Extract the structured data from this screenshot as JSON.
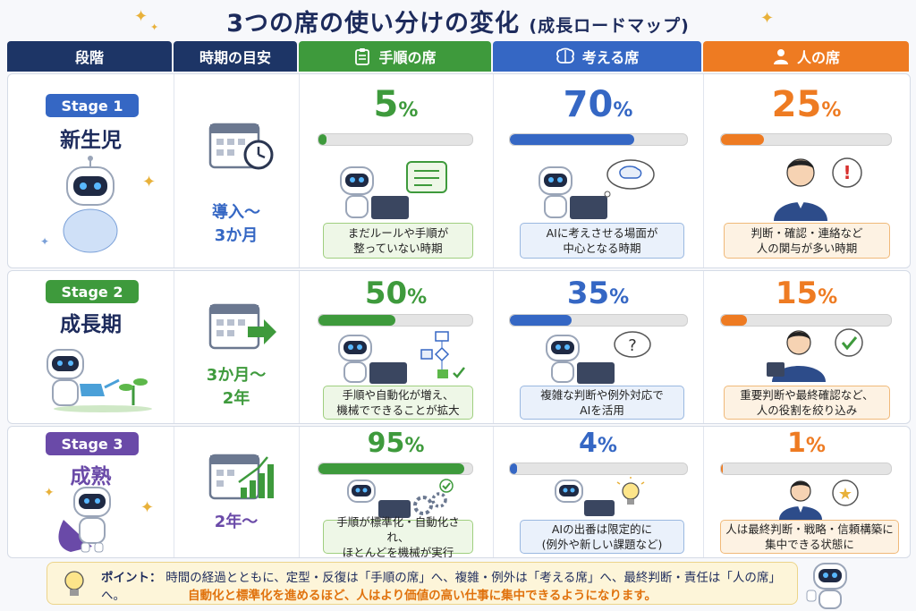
{
  "title": "3つの席の使い分けの変化",
  "subtitle": "(成長ロードマップ)",
  "headers": {
    "stage": "段階",
    "period": "時期の目安",
    "procedure": "手順の席",
    "thinking": "考える席",
    "human": "人の席"
  },
  "colors": {
    "navy": "#1d3566",
    "green": "#3e9a3c",
    "blue": "#3567c4",
    "orange": "#ee7b22",
    "purple": "#6a4aa8"
  },
  "stages": [
    {
      "badge": "Stage 1",
      "name": "新生児",
      "period_line1": "導入〜",
      "period_line2": "3か月",
      "procedure": {
        "value": 5,
        "note1": "まだルールや手順が",
        "note2": "整っていない時期"
      },
      "thinking": {
        "value": 70,
        "note1": "AIに考えさせる場面が",
        "note2": "中心となる時期"
      },
      "human": {
        "value": 25,
        "note1": "判断・確認・連絡など",
        "note2": "人の関与が多い時期"
      }
    },
    {
      "badge": "Stage 2",
      "name": "成長期",
      "period_line1": "3か月〜",
      "period_line2": "2年",
      "procedure": {
        "value": 50,
        "note1": "手順や自動化が増え、",
        "note2": "機械でできることが拡大"
      },
      "thinking": {
        "value": 35,
        "note1": "複雑な判断や例外対応で",
        "note2": "AIを活用"
      },
      "human": {
        "value": 15,
        "note1": "重要判断や最終確認など、",
        "note2": "人の役割を絞り込み"
      }
    },
    {
      "badge": "Stage 3",
      "name": "成熟",
      "period_line1": "2年〜",
      "period_line2": "",
      "procedure": {
        "value": 95,
        "note1": "手順が標準化・自動化され、",
        "note2": "ほとんどを機械が実行"
      },
      "thinking": {
        "value": 4,
        "note1": "AIの出番は限定的に",
        "note2": "(例外や新しい課題など)"
      },
      "human": {
        "value": 1,
        "note1": "人は最終判断・戦略・信頼構築に",
        "note2": "集中できる状態に"
      }
    }
  ],
  "percent_unit": "%",
  "footer": {
    "point_label": "ポイント：",
    "line1": "時間の経過とともに、定型・反復は「手順の席」へ、複雑・例外は「考える席」へ、最終判断・責任は「人の席」へ。",
    "line2": "自動化と標準化を進めるほど、人はより価値の高い仕事に集中できるようになります。"
  }
}
